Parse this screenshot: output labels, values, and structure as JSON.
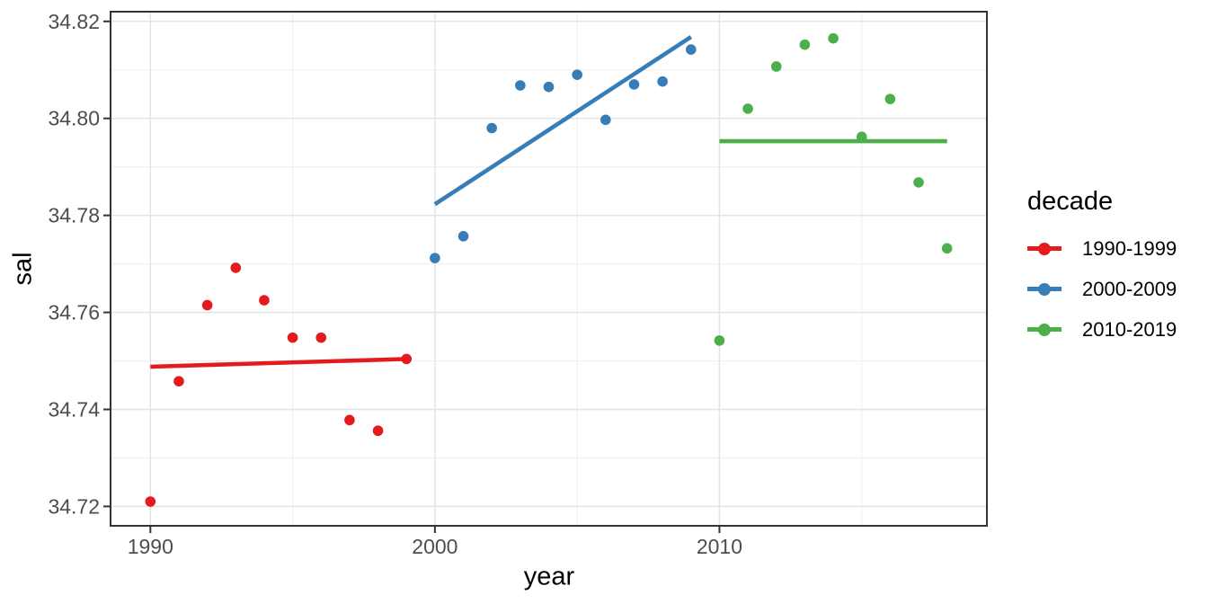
{
  "colors": {
    "background": "#ffffff",
    "axis_text": "#4d4d4d",
    "axis_title": "#000000",
    "grid_major": "#e4e4e4",
    "grid_minor": "#efefef",
    "panel_border": "#333333"
  },
  "chart_data": {
    "type": "scatter",
    "title": "",
    "xlabel": "year",
    "ylabel": "sal",
    "legend_title": "decade",
    "legend_position": "right",
    "grid": true,
    "xlim": [
      1988.6,
      2019.4
    ],
    "ylim": [
      34.716,
      34.822
    ],
    "x_ticks": {
      "values": [
        1990,
        2000,
        2010
      ],
      "labels": [
        "1990",
        "2000",
        "2010"
      ]
    },
    "x_minor_ticks": [
      1995,
      2005,
      2015
    ],
    "y_ticks": {
      "values": [
        34.72,
        34.74,
        34.76,
        34.78,
        34.8,
        34.82
      ],
      "labels": [
        "34.72",
        "34.74",
        "34.76",
        "34.78",
        "34.80",
        "34.82"
      ]
    },
    "y_minor_ticks": [
      34.73,
      34.75,
      34.77,
      34.79,
      34.81
    ],
    "series": [
      {
        "name": "1990-1999",
        "color": "#e41a1c",
        "points": [
          [
            1990,
            34.721
          ],
          [
            1991,
            34.7458
          ],
          [
            1992,
            34.7615
          ],
          [
            1993,
            34.7692
          ],
          [
            1994,
            34.7625
          ],
          [
            1995,
            34.7548
          ],
          [
            1996,
            34.7548
          ],
          [
            1997,
            34.7378
          ],
          [
            1998,
            34.7356
          ],
          [
            1999,
            34.7504
          ]
        ],
        "trend": [
          [
            1990,
            34.7488
          ],
          [
            1999,
            34.7504
          ]
        ]
      },
      {
        "name": "2000-2009",
        "color": "#377eb8",
        "points": [
          [
            2000,
            34.7712
          ],
          [
            2001,
            34.7757
          ],
          [
            2002,
            34.798
          ],
          [
            2003,
            34.8068
          ],
          [
            2004,
            34.8065
          ],
          [
            2005,
            34.809
          ],
          [
            2006,
            34.7997
          ],
          [
            2007,
            34.807
          ],
          [
            2008,
            34.8076
          ],
          [
            2009,
            34.8142
          ]
        ],
        "trend": [
          [
            2000,
            34.7823
          ],
          [
            2009,
            34.8168
          ]
        ]
      },
      {
        "name": "2010-2019",
        "color": "#4daf4a",
        "points": [
          [
            2010,
            34.7542
          ],
          [
            2011,
            34.802
          ],
          [
            2012,
            34.8107
          ],
          [
            2013,
            34.8152
          ],
          [
            2014,
            34.8165
          ],
          [
            2015,
            34.7962
          ],
          [
            2016,
            34.804
          ],
          [
            2017,
            34.7868
          ],
          [
            2018,
            34.7732
          ]
        ],
        "trend": [
          [
            2010,
            34.7953
          ],
          [
            2018,
            34.7953
          ]
        ]
      }
    ]
  }
}
